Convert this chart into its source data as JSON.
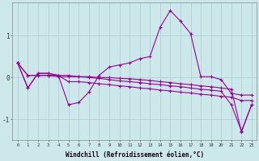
{
  "xlabel": "Windchill (Refroidissement éolien,°C)",
  "background_color": "#cce8ea",
  "line_color": "#990099",
  "grid_color": "#aacccc",
  "hours": [
    0,
    1,
    2,
    3,
    4,
    5,
    6,
    7,
    8,
    9,
    10,
    11,
    12,
    13,
    14,
    15,
    16,
    17,
    18,
    19,
    20,
    21,
    22,
    23
  ],
  "line1": [
    0.35,
    -0.25,
    0.1,
    0.1,
    0.05,
    -0.65,
    -0.6,
    -0.35,
    0.05,
    0.25,
    0.3,
    0.35,
    0.45,
    0.5,
    1.2,
    1.6,
    1.35,
    1.05,
    0.02,
    0.02,
    -0.05,
    -0.38,
    -0.42,
    -0.42
  ],
  "line2": [
    0.35,
    0.05,
    0.05,
    0.05,
    0.02,
    0.02,
    0.02,
    0.02,
    0.0,
    0.0,
    -0.02,
    -0.03,
    -0.05,
    -0.07,
    -0.1,
    -0.12,
    -0.15,
    -0.17,
    -0.2,
    -0.22,
    -0.25,
    -0.28,
    -1.3,
    -0.65
  ],
  "line3": [
    0.35,
    -0.25,
    0.1,
    0.1,
    0.05,
    -0.1,
    -0.1,
    -0.12,
    -0.15,
    -0.17,
    -0.2,
    -0.22,
    -0.25,
    -0.27,
    -0.3,
    -0.32,
    -0.35,
    -0.37,
    -0.4,
    -0.42,
    -0.45,
    -0.47,
    -0.55,
    -0.55
  ],
  "line4": [
    0.35,
    0.05,
    0.05,
    0.05,
    0.05,
    0.05,
    0.02,
    0.0,
    -0.02,
    -0.05,
    -0.08,
    -0.1,
    -0.12,
    -0.15,
    -0.17,
    -0.2,
    -0.22,
    -0.25,
    -0.28,
    -0.3,
    -0.33,
    -0.65,
    -1.28,
    -0.65
  ],
  "ylim": [
    -1.5,
    1.8
  ],
  "yticks": [
    -1,
    0,
    1
  ],
  "xlim": [
    -0.5,
    23.5
  ]
}
